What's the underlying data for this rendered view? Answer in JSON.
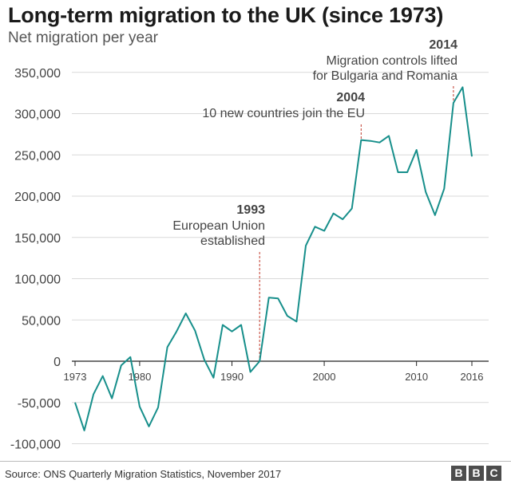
{
  "chart_data": {
    "type": "line",
    "title": "Long-term migration to the UK (since 1973)",
    "subtitle": "Net migration per year",
    "xlabel": "",
    "ylabel": "",
    "xlim": [
      1973,
      2017
    ],
    "ylim": [
      -100000,
      350000
    ],
    "x_ticks": [
      1973,
      1980,
      1990,
      2000,
      2010,
      2016
    ],
    "x_tick_labels": [
      "1973",
      "1980",
      "1990",
      "2000",
      "2010",
      "2016"
    ],
    "y_ticks": [
      -100000,
      -50000,
      0,
      50000,
      100000,
      150000,
      200000,
      250000,
      300000,
      350000
    ],
    "y_tick_labels": [
      "-100,000",
      "-50,000",
      "0",
      "50,000",
      "100,000",
      "150,000",
      "200,000",
      "250,000",
      "300,000",
      "350,000"
    ],
    "grid": "horizontal",
    "line_color": "#178f8b",
    "series": [
      {
        "x": [
          1973,
          1974,
          1975,
          1976,
          1977,
          1978,
          1979,
          1980,
          1981,
          1982,
          1983,
          1984,
          1985,
          1986,
          1987,
          1988,
          1989,
          1990,
          1991,
          1992,
          1993,
          1994,
          1995,
          1996,
          1997,
          1998,
          1999,
          2000,
          2001,
          2002,
          2003,
          2004,
          2005,
          2006,
          2007,
          2008,
          2009,
          2010,
          2011,
          2012,
          2013,
          2014,
          2015,
          2016
        ],
        "values": [
          -50000,
          -84000,
          -40000,
          -18000,
          -45000,
          -5000,
          5000,
          -55000,
          -79000,
          -56000,
          17000,
          36000,
          58000,
          37000,
          2000,
          -20000,
          44000,
          36000,
          44000,
          -13000,
          0,
          77000,
          76000,
          55000,
          48000,
          140000,
          163000,
          158000,
          179000,
          172000,
          185000,
          268000,
          267000,
          265000,
          273000,
          229000,
          229000,
          256000,
          205000,
          177000,
          209000,
          313000,
          332000,
          248000
        ]
      }
    ],
    "annotations": [
      {
        "x": 1993,
        "year_label": "1993",
        "lines": [
          "European Union",
          "established"
        ]
      },
      {
        "x": 2004,
        "year_label": "2004",
        "lines": [
          "10 new countries join the EU"
        ]
      },
      {
        "x": 2014,
        "year_label": "2014",
        "lines": [
          "Migration controls lifted",
          "for Bulgaria and Romania"
        ]
      }
    ]
  },
  "source": "Source: ONS Quarterly Migration Statistics, November 2017",
  "logo": [
    "B",
    "B",
    "C"
  ]
}
